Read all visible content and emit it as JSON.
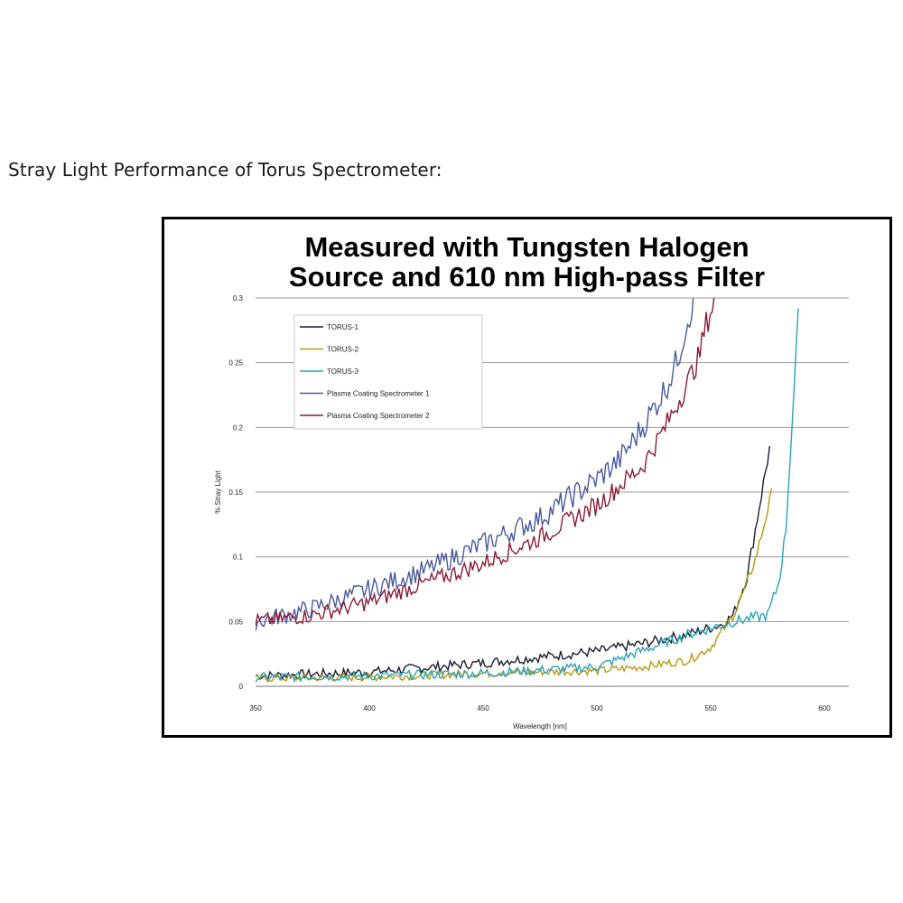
{
  "page": {
    "heading": "Stray Light Performance of Torus Spectrometer:"
  },
  "chart_data": {
    "type": "line",
    "title_line1": "Measured with Tungsten Halogen",
    "title_line2": "Source and 610 nm High-pass Filter",
    "xlabel": "Wavelength [nm]",
    "ylabel": "% Stray Light",
    "xlim": [
      350,
      600
    ],
    "ylim": [
      0,
      0.3
    ],
    "xticks": [
      350,
      400,
      450,
      500,
      550,
      600
    ],
    "xtick_labels": [
      "350",
      "400",
      "450",
      "500",
      "550",
      "600"
    ],
    "yticks": [
      0,
      0.05,
      0.1,
      0.15,
      0.2,
      0.25,
      0.3
    ],
    "ytick_labels": [
      "0",
      "0.05",
      "0.1",
      "0.15",
      "0.2",
      "0.25",
      "0.3"
    ],
    "grid": "horizontal",
    "legend_position": "top-left",
    "series": [
      {
        "name": "TORUS-1",
        "color": "#1c1c2e",
        "noise": 0.0035,
        "x": [
          350,
          400,
          450,
          500,
          520,
          540,
          555,
          560,
          566,
          570,
          576
        ],
        "y": [
          0.008,
          0.011,
          0.018,
          0.027,
          0.033,
          0.04,
          0.048,
          0.055,
          0.085,
          0.125,
          0.185
        ]
      },
      {
        "name": "TORUS-2",
        "color": "#b79a10",
        "noise": 0.003,
        "x": [
          350,
          400,
          450,
          500,
          520,
          540,
          550,
          560,
          565,
          570,
          577
        ],
        "y": [
          0.006,
          0.007,
          0.01,
          0.012,
          0.015,
          0.02,
          0.03,
          0.055,
          0.075,
          0.1,
          0.15
        ]
      },
      {
        "name": "TORUS-3",
        "color": "#2aa3b8",
        "noise": 0.0035,
        "x": [
          350,
          400,
          450,
          500,
          540,
          560,
          575,
          580,
          583,
          585,
          589
        ],
        "y": [
          0.007,
          0.008,
          0.01,
          0.015,
          0.04,
          0.05,
          0.055,
          0.08,
          0.12,
          0.18,
          0.3
        ]
      },
      {
        "name": "Plasma Coating Spectrometer 1",
        "color": "#4b5a9c",
        "noise": 0.006,
        "x": [
          350,
          375,
          400,
          425,
          450,
          475,
          500,
          510,
          520,
          530,
          535,
          540,
          543,
          545
        ],
        "y": [
          0.05,
          0.06,
          0.075,
          0.09,
          0.11,
          0.13,
          0.16,
          0.175,
          0.2,
          0.23,
          0.25,
          0.285,
          0.3,
          0.3
        ]
      },
      {
        "name": "Plasma Coating Spectrometer 2",
        "color": "#8a1c36",
        "noise": 0.005,
        "x": [
          350,
          375,
          400,
          425,
          450,
          475,
          500,
          510,
          520,
          530,
          540,
          545,
          548,
          552
        ],
        "y": [
          0.05,
          0.055,
          0.065,
          0.08,
          0.095,
          0.115,
          0.14,
          0.155,
          0.17,
          0.2,
          0.235,
          0.255,
          0.28,
          0.3
        ]
      }
    ]
  }
}
